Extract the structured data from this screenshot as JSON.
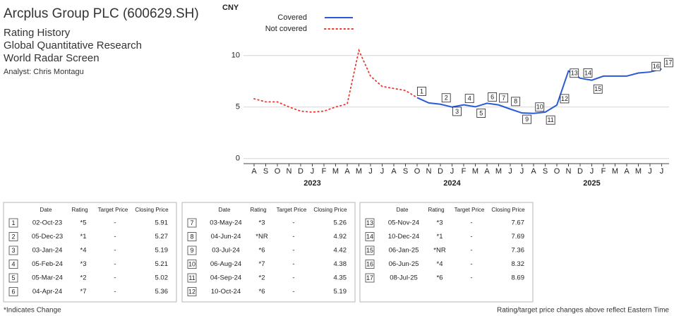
{
  "header": {
    "title": "Arcplus Group PLC (600629.SH)",
    "lines": [
      "Rating History",
      "Global Quantitative Research",
      "World Radar Screen"
    ],
    "analyst": "Analyst: Chris Montagu"
  },
  "chart_data": {
    "type": "line",
    "ylabel": "CNY",
    "x": [
      "2022-08",
      "2022-09",
      "2022-10",
      "2022-11",
      "2022-12",
      "2023-01",
      "2023-02",
      "2023-03",
      "2023-04",
      "2023-05",
      "2023-06",
      "2023-07",
      "2023-08",
      "2023-09",
      "2023-10",
      "2023-11",
      "2023-12",
      "2024-01",
      "2024-02",
      "2024-03",
      "2024-04",
      "2024-05",
      "2024-06",
      "2024-07",
      "2024-08",
      "2024-09",
      "2024-10",
      "2024-11",
      "2024-12",
      "2025-01",
      "2025-02",
      "2025-03",
      "2025-04",
      "2025-05",
      "2025-06",
      "2025-07"
    ],
    "categories": [
      "A",
      "S",
      "O",
      "N",
      "D",
      "J",
      "F",
      "M",
      "A",
      "M",
      "J",
      "J",
      "A",
      "S",
      "O",
      "N",
      "D",
      "J",
      "F",
      "M",
      "A",
      "M",
      "J",
      "J",
      "A",
      "S",
      "O",
      "N",
      "D",
      "J",
      "F",
      "M",
      "A",
      "M",
      "J",
      "J"
    ],
    "years": [
      "2023",
      "2024",
      "2025"
    ],
    "series": [
      {
        "name": "Covered",
        "color": "#2a5bd7",
        "style": "solid",
        "values": [
          null,
          null,
          null,
          null,
          null,
          null,
          null,
          null,
          null,
          null,
          null,
          null,
          null,
          null,
          5.91,
          5.4,
          5.27,
          5.0,
          5.21,
          5.02,
          5.36,
          5.2,
          4.8,
          4.42,
          4.38,
          4.5,
          5.19,
          8.5,
          7.8,
          7.6,
          8.0,
          8.0,
          8.0,
          8.3,
          8.4,
          8.69
        ]
      },
      {
        "name": "Not covered",
        "color": "#e8382f",
        "style": "dotted",
        "values": [
          5.8,
          5.5,
          5.5,
          5.0,
          4.6,
          4.5,
          4.6,
          5.0,
          5.3,
          10.5,
          8.0,
          7.0,
          6.8,
          6.6,
          5.91,
          null,
          null,
          null,
          null,
          null,
          null,
          null,
          null,
          null,
          null,
          null,
          null,
          null,
          null,
          null,
          null,
          null,
          null,
          null,
          null,
          null
        ]
      }
    ],
    "ylim": [
      -0.5,
      14.5
    ],
    "yticks": [
      0,
      5,
      10
    ],
    "grid": true
  },
  "tables": [
    {
      "columns": [
        "Date",
        "Rating",
        "Target Price",
        "Closing Price"
      ],
      "rows": [
        {
          "no": 1,
          "date": "02-Oct-23",
          "rating": "*5",
          "target": "-",
          "close": 5.91
        },
        {
          "no": 2,
          "date": "05-Dec-23",
          "rating": "*1",
          "target": "-",
          "close": 5.27
        },
        {
          "no": 3,
          "date": "03-Jan-24",
          "rating": "*4",
          "target": "-",
          "close": 5.19
        },
        {
          "no": 4,
          "date": "05-Feb-24",
          "rating": "*3",
          "target": "-",
          "close": 5.21
        },
        {
          "no": 5,
          "date": "05-Mar-24",
          "rating": "*2",
          "target": "-",
          "close": 5.02
        },
        {
          "no": 6,
          "date": "04-Apr-24",
          "rating": "*7",
          "target": "-",
          "close": 5.36
        }
      ]
    },
    {
      "columns": [
        "Date",
        "Rating",
        "Target Price",
        "Closing Price"
      ],
      "rows": [
        {
          "no": 7,
          "date": "03-May-24",
          "rating": "*3",
          "target": "-",
          "close": 5.26
        },
        {
          "no": 8,
          "date": "04-Jun-24",
          "rating": "*NR",
          "target": "-",
          "close": 4.92
        },
        {
          "no": 9,
          "date": "03-Jul-24",
          "rating": "*6",
          "target": "-",
          "close": 4.42
        },
        {
          "no": 10,
          "date": "06-Aug-24",
          "rating": "*7",
          "target": "-",
          "close": 4.38
        },
        {
          "no": 11,
          "date": "04-Sep-24",
          "rating": "*2",
          "target": "-",
          "close": 4.35
        },
        {
          "no": 12,
          "date": "10-Oct-24",
          "rating": "*6",
          "target": "-",
          "close": 5.19
        }
      ]
    },
    {
      "columns": [
        "Date",
        "Rating",
        "Target Price",
        "Closing Price"
      ],
      "rows": [
        {
          "no": 13,
          "date": "05-Nov-24",
          "rating": "*3",
          "target": "-",
          "close": 7.67
        },
        {
          "no": 14,
          "date": "10-Dec-24",
          "rating": "*1",
          "target": "-",
          "close": 7.69
        },
        {
          "no": 15,
          "date": "06-Jan-25",
          "rating": "*NR",
          "target": "-",
          "close": 7.36
        },
        {
          "no": 16,
          "date": "06-Jun-25",
          "rating": "*4",
          "target": "-",
          "close": 8.32
        },
        {
          "no": 17,
          "date": "08-Jul-25",
          "rating": "*6",
          "target": "-",
          "close": 8.69
        }
      ]
    }
  ],
  "footer": {
    "left": "*Indicates Change",
    "right": "Rating/target price changes above reflect Eastern Time"
  }
}
